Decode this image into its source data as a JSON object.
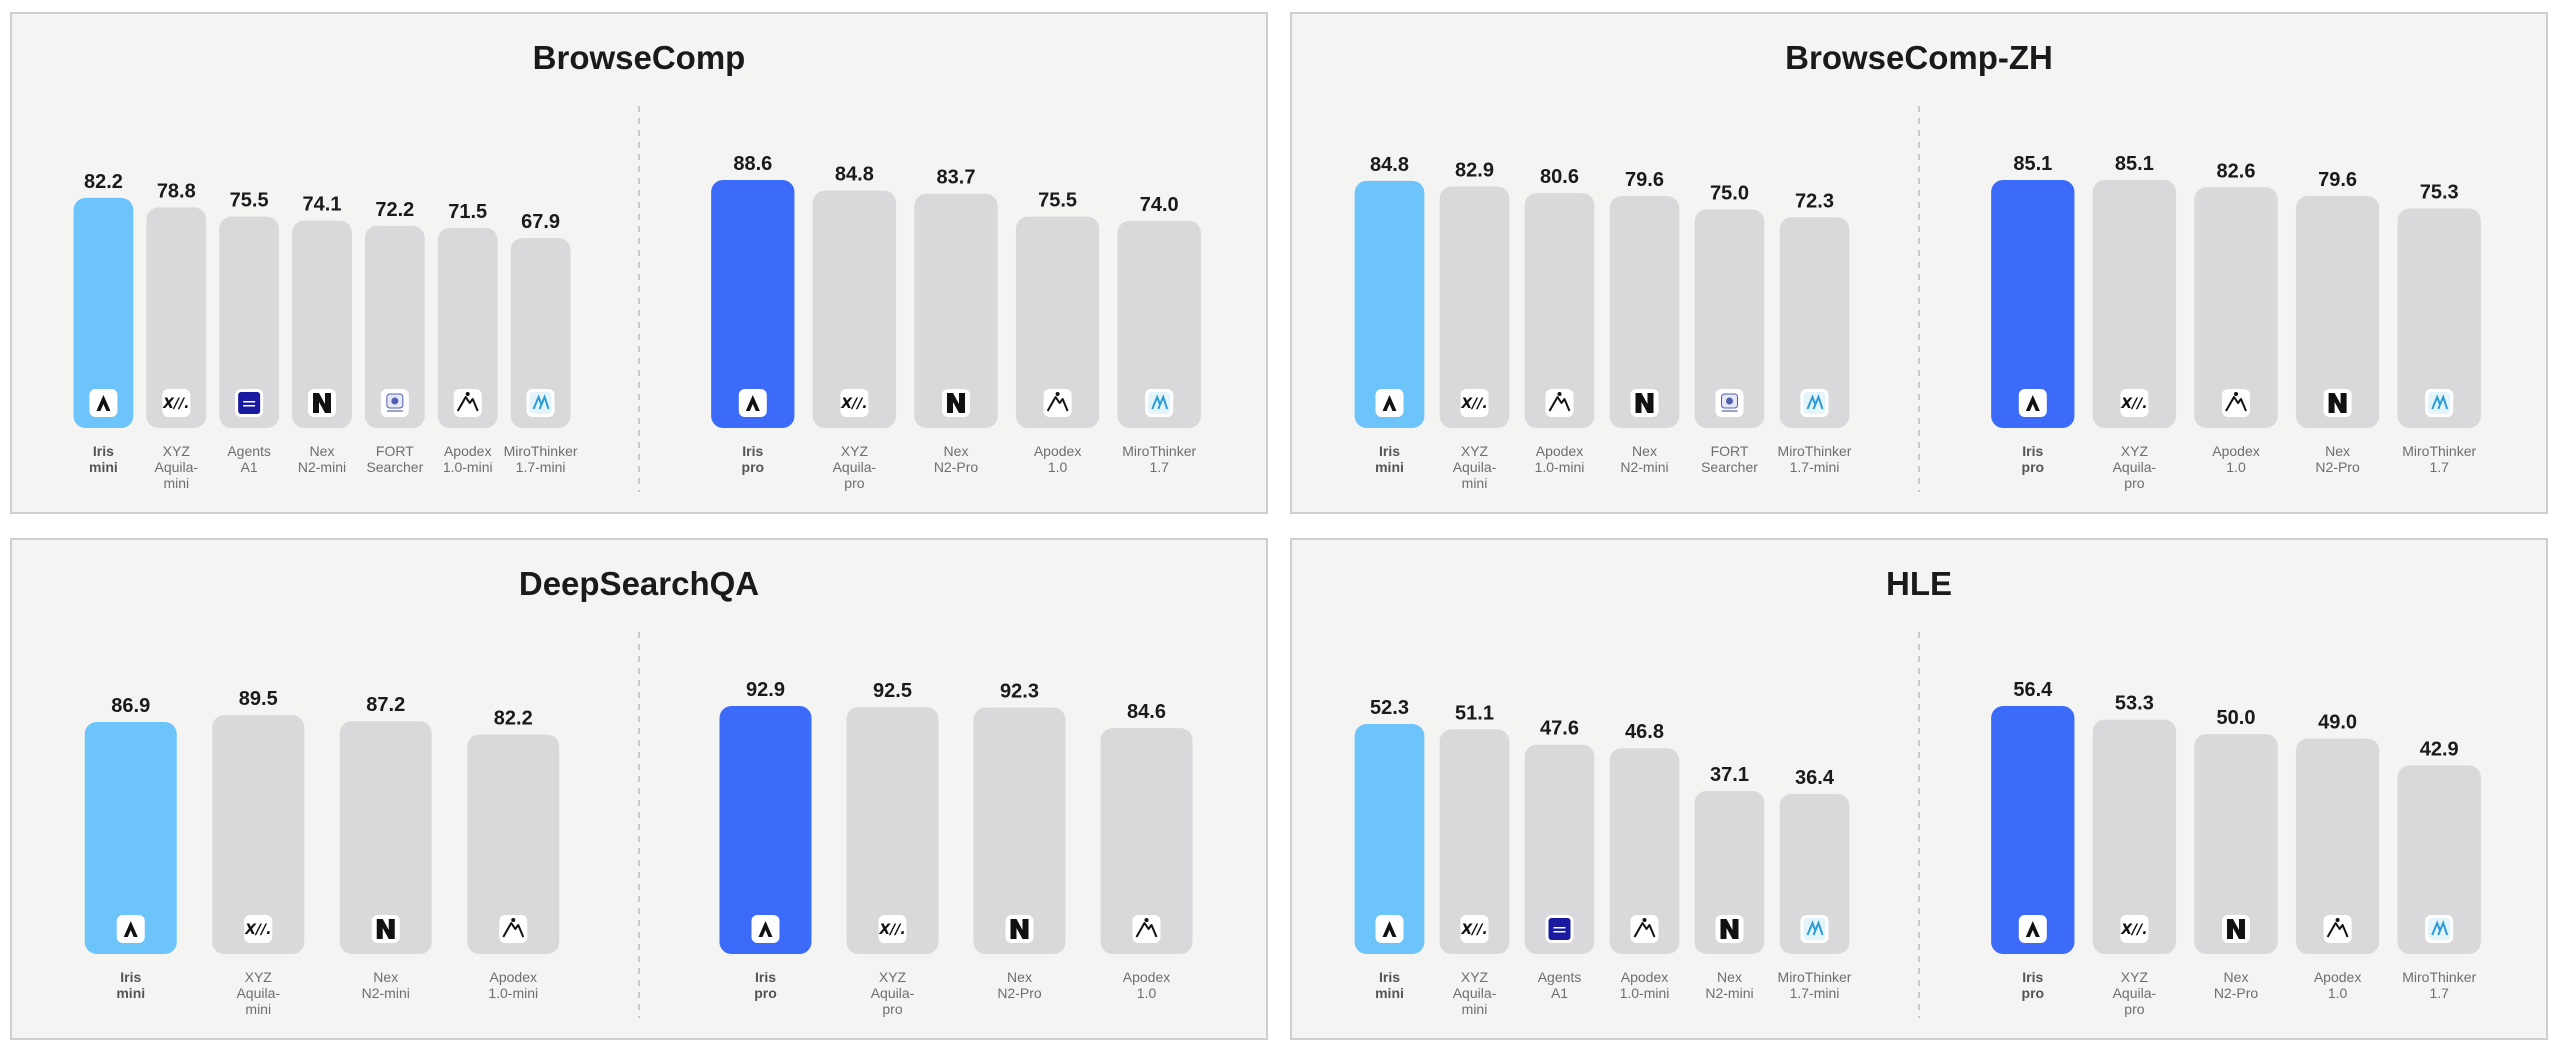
{
  "colors": {
    "panel_bg": "#f4f4f2",
    "bar_grey": "#d9d9dc",
    "iris_mini": "#6cc4fb",
    "iris_pro": "#3c6af9",
    "text_dark": "#1a1a1a",
    "label_grey": "#6e6e6e",
    "divider": "#bdbdbd"
  },
  "chart_data": [
    {
      "type": "bar",
      "title": "BrowseComp",
      "groups": [
        {
          "bars": [
            {
              "label": [
                "Iris",
                "mini"
              ],
              "value": 82.2,
              "highlight": "mini",
              "icon": "iris-icon"
            },
            {
              "label": [
                "XYZ",
                "Aquila-",
                "mini"
              ],
              "value": 78.8,
              "icon": "xyz-icon"
            },
            {
              "label": [
                "Agents",
                "A1"
              ],
              "value": 75.5,
              "icon": "agents-icon"
            },
            {
              "label": [
                "Nex",
                "N2-mini"
              ],
              "value": 74.1,
              "icon": "nex-icon"
            },
            {
              "label": [
                "FORT",
                "Searcher"
              ],
              "value": 72.2,
              "icon": "fort-icon"
            },
            {
              "label": [
                "Apodex",
                "1.0-mini"
              ],
              "value": 71.5,
              "icon": "apodex-icon"
            },
            {
              "label": [
                "MiroThinker",
                "1.7-mini"
              ],
              "value": 67.9,
              "icon": "miro-icon"
            }
          ]
        },
        {
          "bars": [
            {
              "label": [
                "Iris",
                "pro"
              ],
              "value": 88.6,
              "highlight": "pro",
              "icon": "iris-icon"
            },
            {
              "label": [
                "XYZ",
                "Aquila-",
                "pro"
              ],
              "value": 84.8,
              "icon": "xyz-icon"
            },
            {
              "label": [
                "Nex",
                "N2-Pro"
              ],
              "value": 83.7,
              "icon": "nex-icon"
            },
            {
              "label": [
                "Apodex",
                "1.0"
              ],
              "value": 75.5,
              "icon": "apodex-icon"
            },
            {
              "label": [
                "MiroThinker",
                "1.7"
              ],
              "value": 74.0,
              "icon": "miro-icon"
            }
          ]
        }
      ]
    },
    {
      "type": "bar",
      "title": "BrowseComp-ZH",
      "groups": [
        {
          "bars": [
            {
              "label": [
                "Iris",
                "mini"
              ],
              "value": 84.8,
              "highlight": "mini",
              "icon": "iris-icon"
            },
            {
              "label": [
                "XYZ",
                "Aquila-",
                "mini"
              ],
              "value": 82.9,
              "icon": "xyz-icon"
            },
            {
              "label": [
                "Apodex",
                "1.0-mini"
              ],
              "value": 80.6,
              "icon": "apodex-icon"
            },
            {
              "label": [
                "Nex",
                "N2-mini"
              ],
              "value": 79.6,
              "icon": "nex-icon"
            },
            {
              "label": [
                "FORT",
                "Searcher"
              ],
              "value": 75.0,
              "icon": "fort-icon"
            },
            {
              "label": [
                "MiroThinker",
                "1.7-mini"
              ],
              "value": 72.3,
              "icon": "miro-icon"
            }
          ]
        },
        {
          "bars": [
            {
              "label": [
                "Iris",
                "pro"
              ],
              "value": 85.1,
              "highlight": "pro",
              "icon": "iris-icon"
            },
            {
              "label": [
                "XYZ",
                "Aquila-",
                "pro"
              ],
              "value": 85.1,
              "icon": "xyz-icon"
            },
            {
              "label": [
                "Apodex",
                "1.0"
              ],
              "value": 82.6,
              "icon": "apodex-icon"
            },
            {
              "label": [
                "Nex",
                "N2-Pro"
              ],
              "value": 79.6,
              "icon": "nex-icon"
            },
            {
              "label": [
                "MiroThinker",
                "1.7"
              ],
              "value": 75.3,
              "icon": "miro-icon"
            }
          ]
        }
      ]
    },
    {
      "type": "bar",
      "title": "DeepSearchQA",
      "groups": [
        {
          "bars": [
            {
              "label": [
                "Iris",
                "mini"
              ],
              "value": 86.9,
              "highlight": "mini",
              "icon": "iris-icon"
            },
            {
              "label": [
                "XYZ",
                "Aquila-",
                "mini"
              ],
              "value": 89.5,
              "icon": "xyz-icon"
            },
            {
              "label": [
                "Nex",
                "N2-mini"
              ],
              "value": 87.2,
              "icon": "nex-icon"
            },
            {
              "label": [
                "Apodex",
                "1.0-mini"
              ],
              "value": 82.2,
              "icon": "apodex-icon"
            }
          ]
        },
        {
          "bars": [
            {
              "label": [
                "Iris",
                "pro"
              ],
              "value": 92.9,
              "highlight": "pro",
              "icon": "iris-icon"
            },
            {
              "label": [
                "XYZ",
                "Aquila-",
                "pro"
              ],
              "value": 92.5,
              "icon": "xyz-icon"
            },
            {
              "label": [
                "Nex",
                "N2-Pro"
              ],
              "value": 92.3,
              "icon": "nex-icon"
            },
            {
              "label": [
                "Apodex",
                "1.0"
              ],
              "value": 84.6,
              "icon": "apodex-icon"
            }
          ]
        }
      ]
    },
    {
      "type": "bar",
      "title": "HLE",
      "groups": [
        {
          "bars": [
            {
              "label": [
                "Iris",
                "mini"
              ],
              "value": 52.3,
              "highlight": "mini",
              "icon": "iris-icon"
            },
            {
              "label": [
                "XYZ",
                "Aquila-",
                "mini"
              ],
              "value": 51.1,
              "icon": "xyz-icon"
            },
            {
              "label": [
                "Agents",
                "A1"
              ],
              "value": 47.6,
              "icon": "agents-icon"
            },
            {
              "label": [
                "Apodex",
                "1.0-mini"
              ],
              "value": 46.8,
              "icon": "apodex-icon"
            },
            {
              "label": [
                "Nex",
                "N2-mini"
              ],
              "value": 37.1,
              "icon": "nex-icon"
            },
            {
              "label": [
                "MiroThinker",
                "1.7-mini"
              ],
              "value": 36.4,
              "icon": "miro-icon"
            }
          ]
        },
        {
          "bars": [
            {
              "label": [
                "Iris",
                "pro"
              ],
              "value": 56.4,
              "highlight": "pro",
              "icon": "iris-icon"
            },
            {
              "label": [
                "XYZ",
                "Aquila-",
                "pro"
              ],
              "value": 53.3,
              "icon": "xyz-icon"
            },
            {
              "label": [
                "Nex",
                "N2-Pro"
              ],
              "value": 50.0,
              "icon": "nex-icon"
            },
            {
              "label": [
                "Apodex",
                "1.0"
              ],
              "value": 49.0,
              "icon": "apodex-icon"
            },
            {
              "label": [
                "MiroThinker",
                "1.7"
              ],
              "value": 42.9,
              "icon": "miro-icon"
            }
          ]
        }
      ]
    }
  ]
}
